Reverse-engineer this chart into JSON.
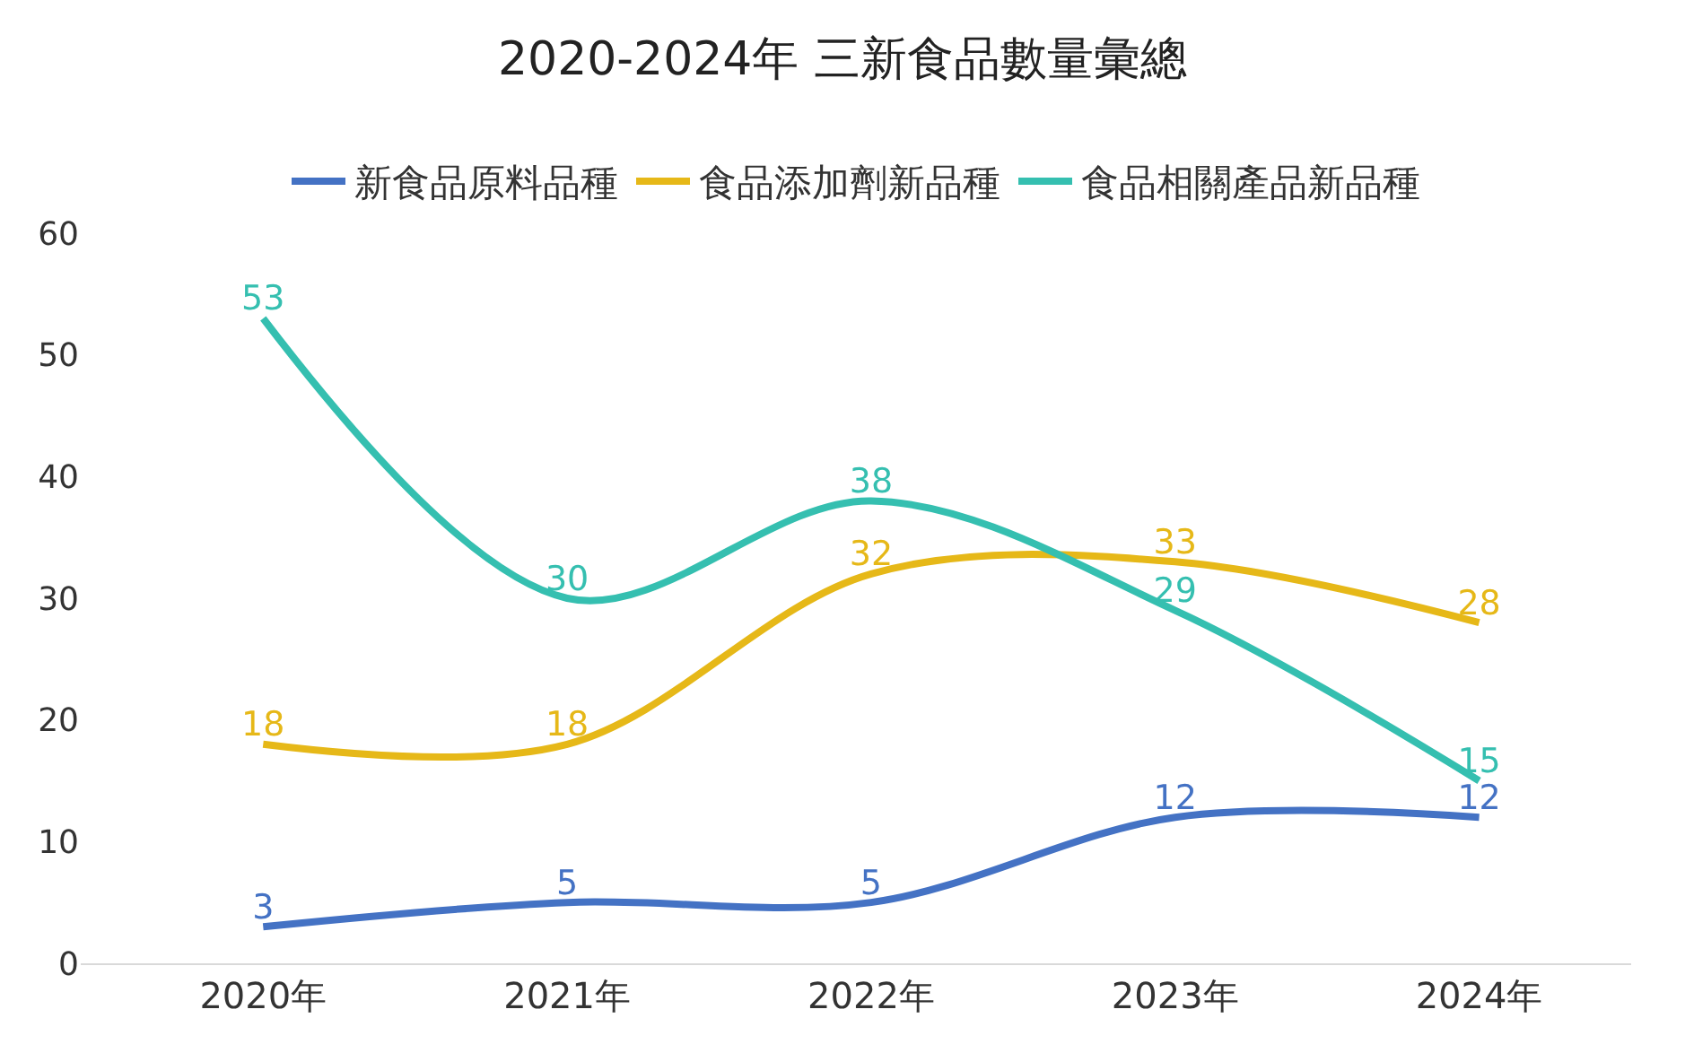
{
  "chart_data": {
    "type": "line",
    "title": "2020-2024年 三新食品數量彙總",
    "categories": [
      "2020年",
      "2021年",
      "2022年",
      "2023年",
      "2024年"
    ],
    "series": [
      {
        "name": "新食品原料品種",
        "color": "#4472c4",
        "values": [
          3,
          5,
          5,
          12,
          12
        ]
      },
      {
        "name": "食品添加劑新品種",
        "color": "#e6b818",
        "values": [
          18,
          18,
          32,
          33,
          28
        ]
      },
      {
        "name": "食品相關產品新品種",
        "color": "#35bfb0",
        "values": [
          53,
          30,
          38,
          29,
          15
        ]
      }
    ],
    "ylim": [
      0,
      60
    ],
    "yticks": [
      0,
      10,
      20,
      30,
      40,
      50,
      60
    ],
    "grid": false,
    "legend": "top",
    "data_labels": true,
    "marker": "none",
    "line_style": "solid"
  }
}
